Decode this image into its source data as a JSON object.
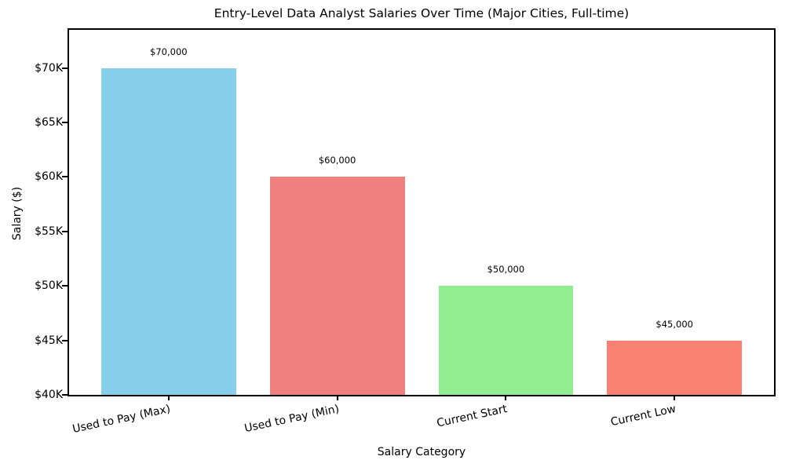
{
  "chart_data": {
    "type": "bar",
    "title": "Entry-Level Data Analyst Salaries Over Time (Major Cities, Full-time)",
    "xlabel": "Salary Category",
    "ylabel": "Salary ($)",
    "categories": [
      "Used to Pay (Max)",
      "Used to Pay (Min)",
      "Current Start",
      "Current Low"
    ],
    "values": [
      70000,
      60000,
      50000,
      45000
    ],
    "bar_value_labels": [
      "$70,000",
      "$60,000",
      "$50,000",
      "$45,000"
    ],
    "bar_colors": [
      "#87CEEB",
      "#F08080",
      "#90EE90",
      "#FA8072"
    ],
    "ylim": [
      40000,
      73500
    ],
    "yticks": [
      40000,
      45000,
      50000,
      55000,
      60000,
      65000,
      70000
    ],
    "ytick_labels": [
      "$40K",
      "$45K",
      "$50K",
      "$55K",
      "$60K",
      "$65K",
      "$70K"
    ],
    "xtick_rotation_deg": 12,
    "grid": false,
    "legend": "none",
    "background_color": "#FFFFFF",
    "axis_color": "#000000",
    "text_color": "#000000"
  }
}
